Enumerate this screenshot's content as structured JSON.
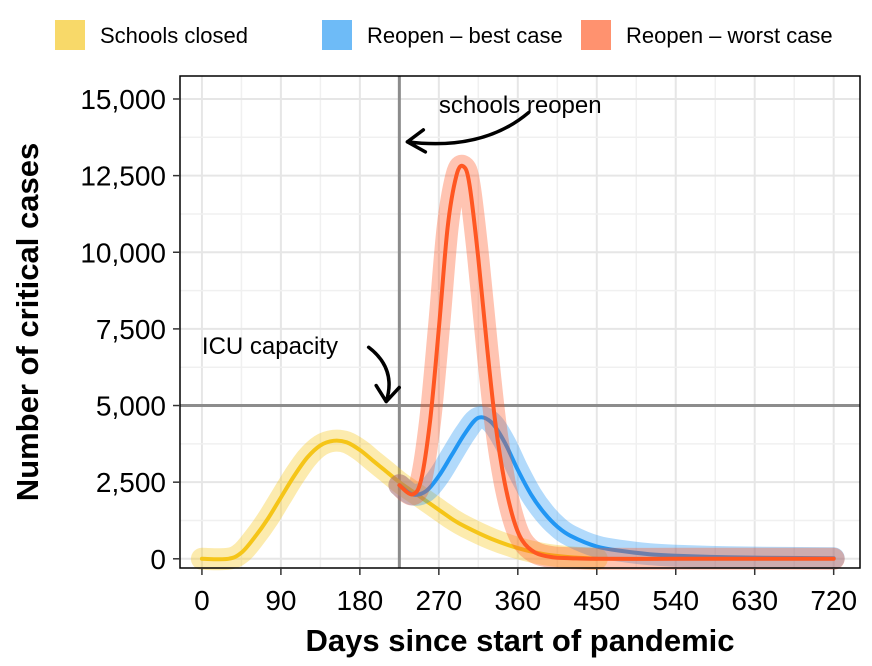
{
  "chart_data": {
    "type": "line",
    "title": "",
    "xlabel": "Days since start of pandemic",
    "ylabel": "Number of critical cases",
    "xlim": [
      -25,
      750
    ],
    "ylim": [
      -300,
      15750
    ],
    "x_ticks": [
      0,
      90,
      180,
      270,
      360,
      450,
      540,
      630,
      720
    ],
    "x_tick_labels": [
      "0",
      "90",
      "180",
      "270",
      "360",
      "450",
      "540",
      "630",
      "720"
    ],
    "y_ticks": [
      0,
      2500,
      5000,
      7500,
      10000,
      12500,
      15000
    ],
    "y_tick_labels": [
      "0",
      "2,500",
      "5,000",
      "7,500",
      "10,000",
      "12,500",
      "15,000"
    ],
    "grid": true,
    "legend_position": "top",
    "series": [
      {
        "name": "Schools closed",
        "color": "#f5c518",
        "x": [
          0,
          30,
          45,
          60,
          75,
          90,
          105,
          120,
          135,
          150,
          165,
          180,
          195,
          210,
          225,
          240,
          255,
          270,
          285,
          300,
          330,
          360,
          390,
          420,
          450
        ],
        "y": [
          0,
          0,
          200,
          700,
          1300,
          2000,
          2700,
          3300,
          3700,
          3850,
          3800,
          3550,
          3200,
          2850,
          2500,
          2200,
          1900,
          1600,
          1300,
          1050,
          650,
          350,
          150,
          50,
          0
        ]
      },
      {
        "name": "Reopen – best case",
        "color": "#2196f3",
        "x": [
          225,
          240,
          255,
          270,
          285,
          300,
          315,
          330,
          345,
          360,
          375,
          390,
          405,
          420,
          450,
          480,
          510,
          540,
          600,
          660,
          720
        ],
        "y": [
          2400,
          2100,
          2200,
          2700,
          3400,
          4100,
          4600,
          4450,
          3800,
          2900,
          2100,
          1500,
          1050,
          750,
          400,
          250,
          150,
          100,
          50,
          30,
          20
        ]
      },
      {
        "name": "Reopen – worst case",
        "color": "#ff5722",
        "x": [
          225,
          240,
          250,
          260,
          270,
          280,
          290,
          298,
          305,
          315,
          325,
          335,
          345,
          355,
          365,
          380,
          400,
          420,
          450,
          540,
          630,
          720
        ],
        "y": [
          2400,
          2100,
          2600,
          4500,
          7500,
          10800,
          12500,
          12800,
          12200,
          9800,
          6900,
          4300,
          2500,
          1300,
          600,
          200,
          50,
          20,
          0,
          0,
          0,
          0
        ]
      }
    ],
    "reference_lines": {
      "vertical_x": 225,
      "horizontal_y": 5000
    },
    "annotations": [
      {
        "text": "schools reopen",
        "x": 270,
        "y": 14800
      },
      {
        "text": "ICU capacity",
        "x": 0,
        "y": 6950
      }
    ]
  }
}
